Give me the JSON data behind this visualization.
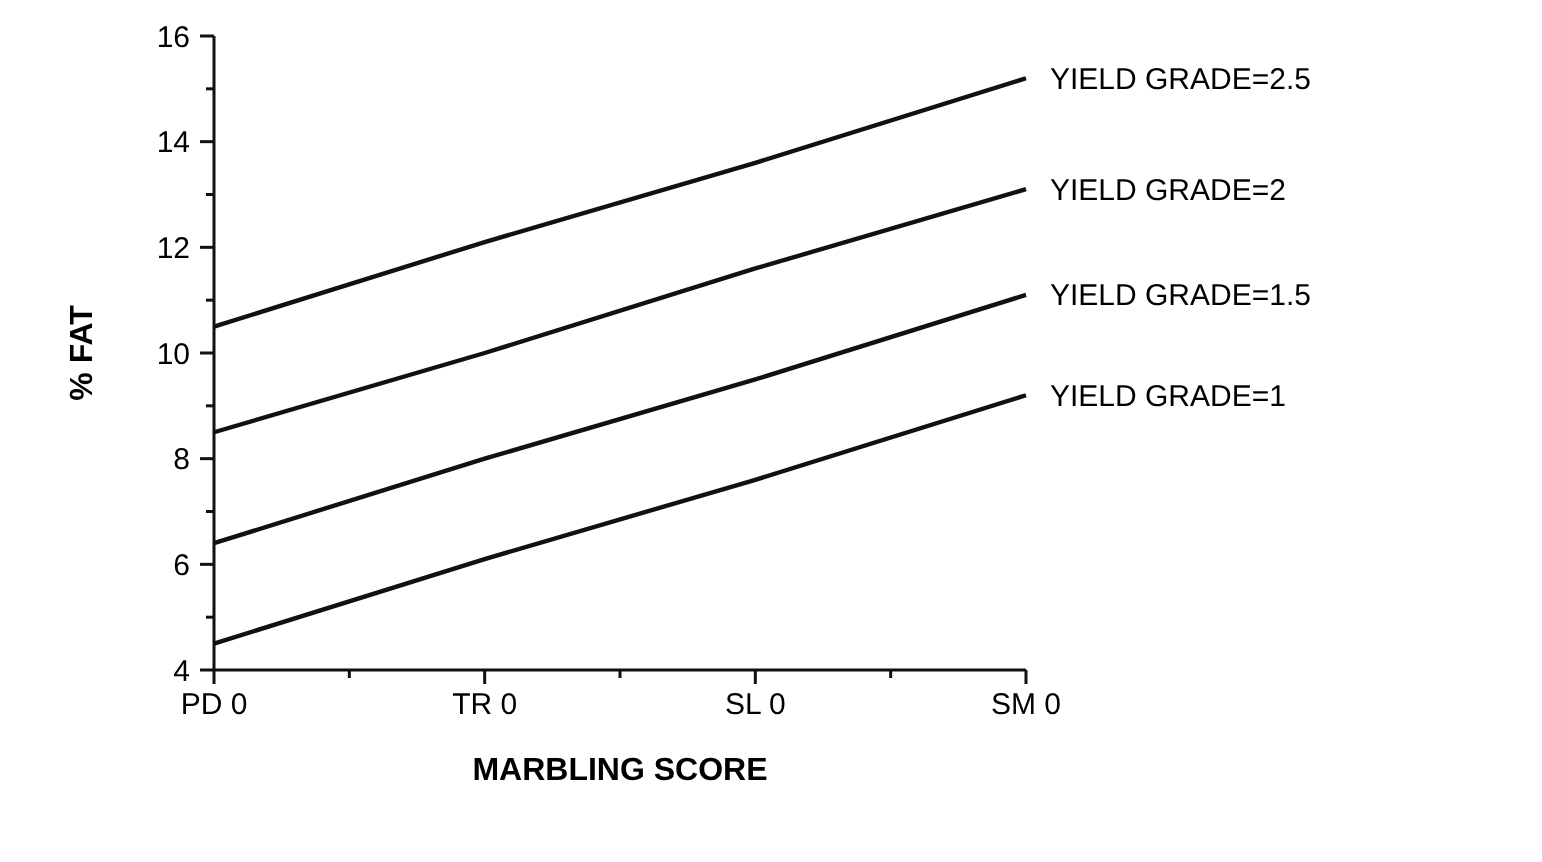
{
  "chart_data": {
    "type": "line",
    "xlabel": "MARBLING SCORE",
    "ylabel": "% FAT",
    "categories": [
      "PD 0",
      "TR 0",
      "SL 0",
      "SM 0"
    ],
    "ylim": [
      4,
      16
    ],
    "yticks": [
      4,
      {
        "value": 5,
        "label": null
      },
      6,
      {
        "value": 7,
        "label": null
      },
      8,
      {
        "value": 9,
        "label": null
      },
      10,
      {
        "value": 11,
        "label": null
      },
      12,
      {
        "value": 13,
        "label": null
      },
      14,
      {
        "value": 15,
        "label": null
      },
      16
    ],
    "grid": false,
    "marker": "none",
    "line_style": "solid",
    "series": [
      {
        "name": "YIELD GRADE=2.5",
        "color": "#111111",
        "values": [
          10.5,
          12.1,
          13.6,
          15.2
        ]
      },
      {
        "name": "YIELD GRADE=2",
        "color": "#111111",
        "values": [
          8.5,
          10.0,
          11.6,
          13.1
        ]
      },
      {
        "name": "YIELD GRADE=1.5",
        "color": "#111111",
        "values": [
          6.4,
          8.0,
          9.5,
          11.1
        ]
      },
      {
        "name": "YIELD GRADE=1",
        "color": "#111111",
        "values": [
          4.5,
          6.1,
          7.6,
          9.2
        ]
      }
    ]
  }
}
